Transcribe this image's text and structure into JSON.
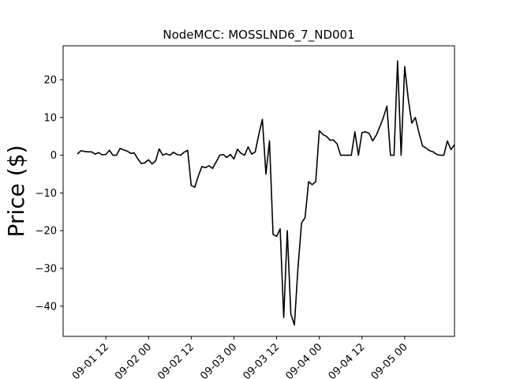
{
  "chart_data": {
    "type": "line",
    "title": "NodeMCC: MOSSLND6_7_ND001",
    "xlabel": "",
    "ylabel": "Price ($)",
    "x_axis": "datetime (hours)",
    "xlim": [
      "2024-09-01 00:00",
      "2024-09-05 14:00"
    ],
    "ylim": [
      -48,
      29
    ],
    "grid": false,
    "legend": "none",
    "line_color": "#000000",
    "xticks": [
      {
        "value": "2024-09-01 12:00",
        "label": "09-01 12"
      },
      {
        "value": "2024-09-02 00:00",
        "label": "09-02 00"
      },
      {
        "value": "2024-09-02 12:00",
        "label": "09-02 12"
      },
      {
        "value": "2024-09-03 00:00",
        "label": "09-03 00"
      },
      {
        "value": "2024-09-03 12:00",
        "label": "09-03 12"
      },
      {
        "value": "2024-09-04 00:00",
        "label": "09-04 00"
      },
      {
        "value": "2024-09-04 12:00",
        "label": "09-04 12"
      },
      {
        "value": "2024-09-05 00:00",
        "label": "09-05 00"
      }
    ],
    "yticks": [
      {
        "value": 20,
        "label": "20"
      },
      {
        "value": 10,
        "label": "10"
      },
      {
        "value": 0,
        "label": "0"
      },
      {
        "value": -10,
        "label": "−10"
      },
      {
        "value": -20,
        "label": "−20"
      },
      {
        "value": -30,
        "label": "−30"
      },
      {
        "value": -40,
        "label": "−40"
      }
    ],
    "series": [
      {
        "points": [
          [
            "2024-09-01 04:00",
            0.3
          ],
          [
            "2024-09-01 05:00",
            1.2
          ],
          [
            "2024-09-01 06:00",
            1.0
          ],
          [
            "2024-09-01 07:00",
            0.9
          ],
          [
            "2024-09-01 08:00",
            0.9
          ],
          [
            "2024-09-01 09:00",
            0.3
          ],
          [
            "2024-09-01 10:00",
            0.7
          ],
          [
            "2024-09-01 11:00",
            0.1
          ],
          [
            "2024-09-01 12:00",
            0.2
          ],
          [
            "2024-09-01 13:00",
            1.3
          ],
          [
            "2024-09-01 14:00",
            0.0
          ],
          [
            "2024-09-01 15:00",
            0.0
          ],
          [
            "2024-09-01 16:00",
            1.8
          ],
          [
            "2024-09-01 17:00",
            1.4
          ],
          [
            "2024-09-01 18:00",
            1.1
          ],
          [
            "2024-09-01 19:00",
            0.5
          ],
          [
            "2024-09-01 20:00",
            0.6
          ],
          [
            "2024-09-01 21:00",
            -1.0
          ],
          [
            "2024-09-01 22:00",
            -2.2
          ],
          [
            "2024-09-01 23:00",
            -2.0
          ],
          [
            "2024-09-02 00:00",
            -1.2
          ],
          [
            "2024-09-02 01:00",
            -2.3
          ],
          [
            "2024-09-02 02:00",
            -1.5
          ],
          [
            "2024-09-02 03:00",
            1.7
          ],
          [
            "2024-09-02 04:00",
            0.0
          ],
          [
            "2024-09-02 05:00",
            0.4
          ],
          [
            "2024-09-02 06:00",
            0.0
          ],
          [
            "2024-09-02 07:00",
            0.8
          ],
          [
            "2024-09-02 08:00",
            0.2
          ],
          [
            "2024-09-02 09:00",
            0.0
          ],
          [
            "2024-09-02 10:00",
            0.8
          ],
          [
            "2024-09-02 11:00",
            1.3
          ],
          [
            "2024-09-02 12:00",
            -8.0
          ],
          [
            "2024-09-02 13:00",
            -8.5
          ],
          [
            "2024-09-02 14:00",
            -5.5
          ],
          [
            "2024-09-02 15:00",
            -3.0
          ],
          [
            "2024-09-02 16:00",
            -3.3
          ],
          [
            "2024-09-02 17:00",
            -2.8
          ],
          [
            "2024-09-02 18:00",
            -3.5
          ],
          [
            "2024-09-02 19:00",
            -1.8
          ],
          [
            "2024-09-02 20:00",
            0.0
          ],
          [
            "2024-09-02 21:00",
            0.2
          ],
          [
            "2024-09-02 22:00",
            -0.6
          ],
          [
            "2024-09-02 23:00",
            0.2
          ],
          [
            "2024-09-03 00:00",
            -1.0
          ],
          [
            "2024-09-03 01:00",
            1.6
          ],
          [
            "2024-09-03 02:00",
            0.5
          ],
          [
            "2024-09-03 03:00",
            0.0
          ],
          [
            "2024-09-03 04:00",
            2.2
          ],
          [
            "2024-09-03 05:00",
            0.3
          ],
          [
            "2024-09-03 06:00",
            0.9
          ],
          [
            "2024-09-03 07:00",
            5.5
          ],
          [
            "2024-09-03 08:00",
            9.5
          ],
          [
            "2024-09-03 09:00",
            -5.0
          ],
          [
            "2024-09-03 10:00",
            3.8
          ],
          [
            "2024-09-03 11:00",
            -21.0
          ],
          [
            "2024-09-03 12:00",
            -21.5
          ],
          [
            "2024-09-03 13:00",
            -19.5
          ],
          [
            "2024-09-03 14:00",
            -43.0
          ],
          [
            "2024-09-03 15:00",
            -20.0
          ],
          [
            "2024-09-03 16:00",
            -42.0
          ],
          [
            "2024-09-03 17:00",
            -45.0
          ],
          [
            "2024-09-03 18:00",
            -30.0
          ],
          [
            "2024-09-03 19:00",
            -18.0
          ],
          [
            "2024-09-03 20:00",
            -16.5
          ],
          [
            "2024-09-03 21:00",
            -7.0
          ],
          [
            "2024-09-03 22:00",
            -7.8
          ],
          [
            "2024-09-03 23:00",
            -7.0
          ],
          [
            "2024-09-04 00:00",
            6.5
          ],
          [
            "2024-09-04 01:00",
            5.5
          ],
          [
            "2024-09-04 02:00",
            5.0
          ],
          [
            "2024-09-04 03:00",
            4.0
          ],
          [
            "2024-09-04 04:00",
            4.0
          ],
          [
            "2024-09-04 05:00",
            3.0
          ],
          [
            "2024-09-04 06:00",
            0.0
          ],
          [
            "2024-09-04 07:00",
            0.0
          ],
          [
            "2024-09-04 08:00",
            0.0
          ],
          [
            "2024-09-04 09:00",
            0.0
          ],
          [
            "2024-09-04 10:00",
            6.2
          ],
          [
            "2024-09-04 11:00",
            0.0
          ],
          [
            "2024-09-04 12:00",
            6.0
          ],
          [
            "2024-09-04 13:00",
            6.2
          ],
          [
            "2024-09-04 14:00",
            5.8
          ],
          [
            "2024-09-04 15:00",
            3.8
          ],
          [
            "2024-09-04 16:00",
            5.3
          ],
          [
            "2024-09-04 17:00",
            7.5
          ],
          [
            "2024-09-04 18:00",
            10.0
          ],
          [
            "2024-09-04 19:00",
            13.0
          ],
          [
            "2024-09-04 20:00",
            0.0
          ],
          [
            "2024-09-04 21:00",
            0.0
          ],
          [
            "2024-09-04 22:00",
            25.0
          ],
          [
            "2024-09-04 23:00",
            0.0
          ],
          [
            "2024-09-05 00:00",
            23.5
          ],
          [
            "2024-09-05 01:00",
            15.0
          ],
          [
            "2024-09-05 02:00",
            8.5
          ],
          [
            "2024-09-05 03:00",
            10.0
          ],
          [
            "2024-09-05 04:00",
            6.0
          ],
          [
            "2024-09-05 05:00",
            2.5
          ],
          [
            "2024-09-05 06:00",
            1.9
          ],
          [
            "2024-09-05 07:00",
            1.2
          ],
          [
            "2024-09-05 08:00",
            0.9
          ],
          [
            "2024-09-05 09:00",
            0.2
          ],
          [
            "2024-09-05 10:00",
            0.0
          ],
          [
            "2024-09-05 11:00",
            0.0
          ],
          [
            "2024-09-05 12:00",
            3.8
          ],
          [
            "2024-09-05 13:00",
            1.5
          ],
          [
            "2024-09-05 14:00",
            2.8
          ]
        ]
      }
    ]
  }
}
